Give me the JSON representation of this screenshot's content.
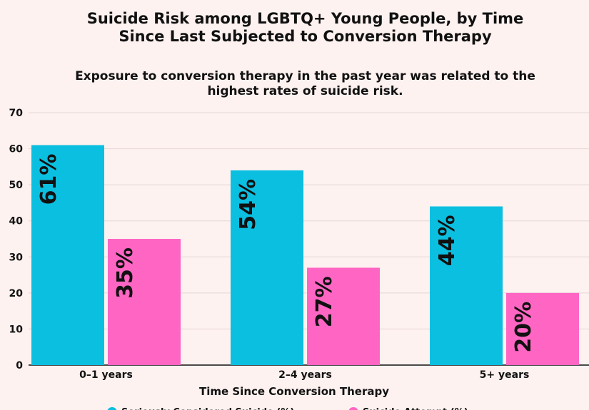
{
  "title": "Suicide Risk among LGBTQ+ Young People, by Time Since Last Subjected to Conversion Therapy",
  "subtitle": "Exposure to conversion therapy in the past year was related to the highest rates of suicide risk.",
  "colors": {
    "background": "#fdf2f0",
    "considered": "#0bbfe0",
    "attempt": "#ff66c4",
    "grid": "#e6d6d4"
  },
  "chart_data": {
    "type": "bar",
    "title": "Suicide Risk among LGBTQ+ Young People, by Time Since Last Subjected to Conversion Therapy",
    "subtitle": "Exposure to conversion therapy in the past year was related to the highest rates of suicide risk.",
    "categories": [
      "0–1 years",
      "2–4 years",
      "5+ years"
    ],
    "series": [
      {
        "name": "Seriously Considered Suicide (%)",
        "values": [
          61,
          54,
          44
        ],
        "labels": [
          "61%",
          "54%",
          "44%"
        ],
        "color": "#0bbfe0"
      },
      {
        "name": "Suicide Attempt (%)",
        "values": [
          35,
          27,
          20
        ],
        "labels": [
          "35%",
          "27%",
          "20%"
        ],
        "color": "#ff66c4"
      }
    ],
    "xlabel": "Time Since Conversion Therapy",
    "ylabel": "",
    "ylim": [
      0,
      70
    ],
    "yticks": [
      "0",
      "10",
      "20",
      "30",
      "40",
      "50",
      "60",
      "70"
    ],
    "grid": true,
    "legend": "bottom"
  }
}
